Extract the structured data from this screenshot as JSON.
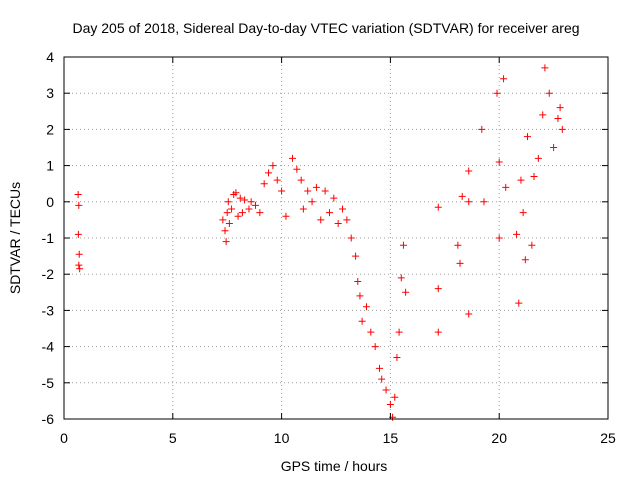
{
  "chart_data": {
    "type": "scatter",
    "title": "Day 205 of 2018, Sidereal Day-to-day VTEC variation (SDTVAR) for receiver areg",
    "xlabel": "GPS time / hours",
    "ylabel": "SDTVAR / TECUs",
    "xlim": [
      0,
      25
    ],
    "ylim": [
      -6,
      4
    ],
    "xticks": [
      0,
      5,
      10,
      15,
      20,
      25
    ],
    "yticks": [
      -6,
      -5,
      -4,
      -3,
      -2,
      -1,
      0,
      1,
      2,
      3,
      4
    ],
    "grid": true,
    "marker": "+",
    "color": "#ff0000",
    "points": [
      [
        0.65,
        0.2
      ],
      [
        0.68,
        -0.1
      ],
      [
        0.66,
        -0.9
      ],
      [
        0.7,
        -1.45
      ],
      [
        0.68,
        -1.75
      ],
      [
        0.72,
        -1.85
      ],
      [
        7.3,
        -0.5
      ],
      [
        7.4,
        -0.8
      ],
      [
        7.45,
        -1.1
      ],
      [
        7.5,
        -0.3
      ],
      [
        7.55,
        0.0
      ],
      [
        7.6,
        -0.6
      ],
      [
        7.7,
        -0.2
      ],
      [
        7.8,
        0.2
      ],
      [
        7.9,
        0.25
      ],
      [
        8.0,
        -0.4
      ],
      [
        8.1,
        0.1
      ],
      [
        8.2,
        -0.3
      ],
      [
        8.3,
        0.05
      ],
      [
        8.5,
        -0.2
      ],
      [
        8.6,
        0.0
      ],
      [
        8.8,
        -0.1
      ],
      [
        9.0,
        -0.3
      ],
      [
        9.2,
        0.5
      ],
      [
        9.4,
        0.8
      ],
      [
        9.6,
        1.0
      ],
      [
        9.8,
        0.6
      ],
      [
        10.0,
        0.3
      ],
      [
        10.2,
        -0.4
      ],
      [
        10.5,
        1.2
      ],
      [
        10.7,
        0.9
      ],
      [
        10.9,
        0.6
      ],
      [
        11.0,
        -0.2
      ],
      [
        11.2,
        0.3
      ],
      [
        11.4,
        0.0
      ],
      [
        11.6,
        0.4
      ],
      [
        11.8,
        -0.5
      ],
      [
        12.0,
        0.3
      ],
      [
        12.2,
        -0.3
      ],
      [
        12.4,
        0.1
      ],
      [
        12.6,
        -0.6
      ],
      [
        12.8,
        -0.2
      ],
      [
        13.0,
        -0.5
      ],
      [
        13.2,
        -1.0
      ],
      [
        13.4,
        -1.5
      ],
      [
        13.5,
        -2.2
      ],
      [
        13.6,
        -2.6
      ],
      [
        13.7,
        -3.3
      ],
      [
        13.9,
        -2.9
      ],
      [
        14.1,
        -3.6
      ],
      [
        14.3,
        -4.0
      ],
      [
        14.5,
        -4.6
      ],
      [
        14.6,
        -4.9
      ],
      [
        14.8,
        -5.2
      ],
      [
        15.0,
        -5.6
      ],
      [
        15.1,
        -5.95
      ],
      [
        15.2,
        -5.4
      ],
      [
        15.3,
        -4.3
      ],
      [
        15.4,
        -3.6
      ],
      [
        15.5,
        -2.1
      ],
      [
        15.6,
        -1.2
      ],
      [
        15.7,
        -2.5
      ],
      [
        17.2,
        -0.15
      ],
      [
        17.2,
        -2.4
      ],
      [
        17.2,
        -3.6
      ],
      [
        18.1,
        -1.2
      ],
      [
        18.2,
        -1.7
      ],
      [
        18.3,
        0.15
      ],
      [
        18.6,
        0.85
      ],
      [
        18.6,
        0.0
      ],
      [
        18.6,
        -3.1
      ],
      [
        19.2,
        2.0
      ],
      [
        19.3,
        0.0
      ],
      [
        19.9,
        3.0
      ],
      [
        20.0,
        1.1
      ],
      [
        20.0,
        -1.0
      ],
      [
        20.2,
        3.4
      ],
      [
        20.3,
        0.4
      ],
      [
        20.8,
        -0.9
      ],
      [
        20.9,
        -2.8
      ],
      [
        21.0,
        0.6
      ],
      [
        21.1,
        -0.3
      ],
      [
        21.2,
        -1.6
      ],
      [
        21.3,
        1.8
      ],
      [
        21.5,
        -1.2
      ],
      [
        21.6,
        0.7
      ],
      [
        21.8,
        1.2
      ],
      [
        22.0,
        2.4
      ],
      [
        22.1,
        3.7
      ],
      [
        22.3,
        3.0
      ],
      [
        22.5,
        1.5
      ],
      [
        22.7,
        2.3
      ],
      [
        22.8,
        2.6
      ],
      [
        22.9,
        2.0
      ]
    ]
  }
}
